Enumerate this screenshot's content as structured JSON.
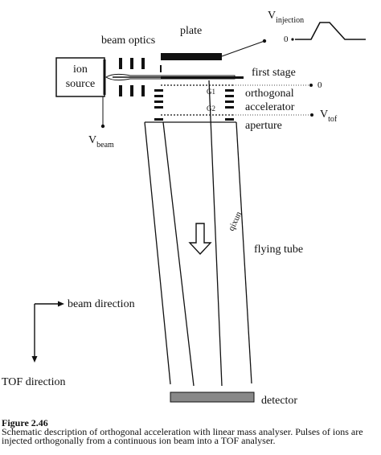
{
  "labels": {
    "ion_source_line1": "ion",
    "ion_source_line2": "source",
    "beam_optics": "beam optics",
    "plate": "plate",
    "v_injection_main": "V",
    "v_injection_sub": "injection",
    "zero_injection": "0",
    "first_stage": "first stage",
    "zero_first": "0",
    "g1": "G1",
    "g2": "G2",
    "orthogonal_line1": "orthogonal",
    "orthogonal_line2": "accelerator",
    "v_tof_main": "V",
    "v_tof_sub": "tof",
    "aperture": "aperture",
    "v_beam_main": "V",
    "v_beam_sub": "beam",
    "flying_tube": "flying tube",
    "watermark": "qixun",
    "beam_direction": "beam direction",
    "tof_direction": "TOF direction",
    "detector": "detector"
  },
  "caption": {
    "number": "Figure 2.46",
    "text": "Schematic description of orthogonal acceleration with linear mass analyser. Pulses of ions are injected orthogonally from a continuous ion beam into a TOF analyser."
  }
}
